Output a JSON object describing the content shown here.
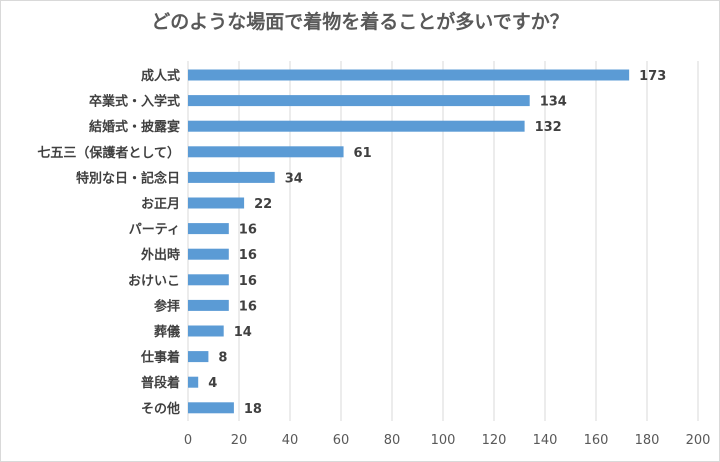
{
  "chart_data": {
    "type": "bar",
    "orientation": "horizontal",
    "title": "どのような場面で着物を着ることが多いですか？",
    "categories": [
      "成人式",
      "卒業式・入学式",
      "結婚式・披露宴",
      "七五三（保護者として）",
      "特別な日・記念日",
      "お正月",
      "パーティ",
      "外出時",
      "おけいこ",
      "参拝",
      "葬儀",
      "仕事着",
      "普段着",
      "その他"
    ],
    "values": [
      173,
      134,
      132,
      61,
      34,
      22,
      16,
      16,
      16,
      16,
      14,
      8,
      4,
      18
    ],
    "xlim": [
      0,
      200
    ],
    "xticks": [
      0,
      20,
      40,
      60,
      80,
      100,
      120,
      140,
      160,
      180,
      200
    ],
    "xlabel": "",
    "ylabel": "",
    "grid": "vertical",
    "legend": "none",
    "data_labels": true,
    "colors": {
      "bar": "#5b9bd5",
      "grid": "#d9d9d9",
      "text": "#404040"
    }
  }
}
